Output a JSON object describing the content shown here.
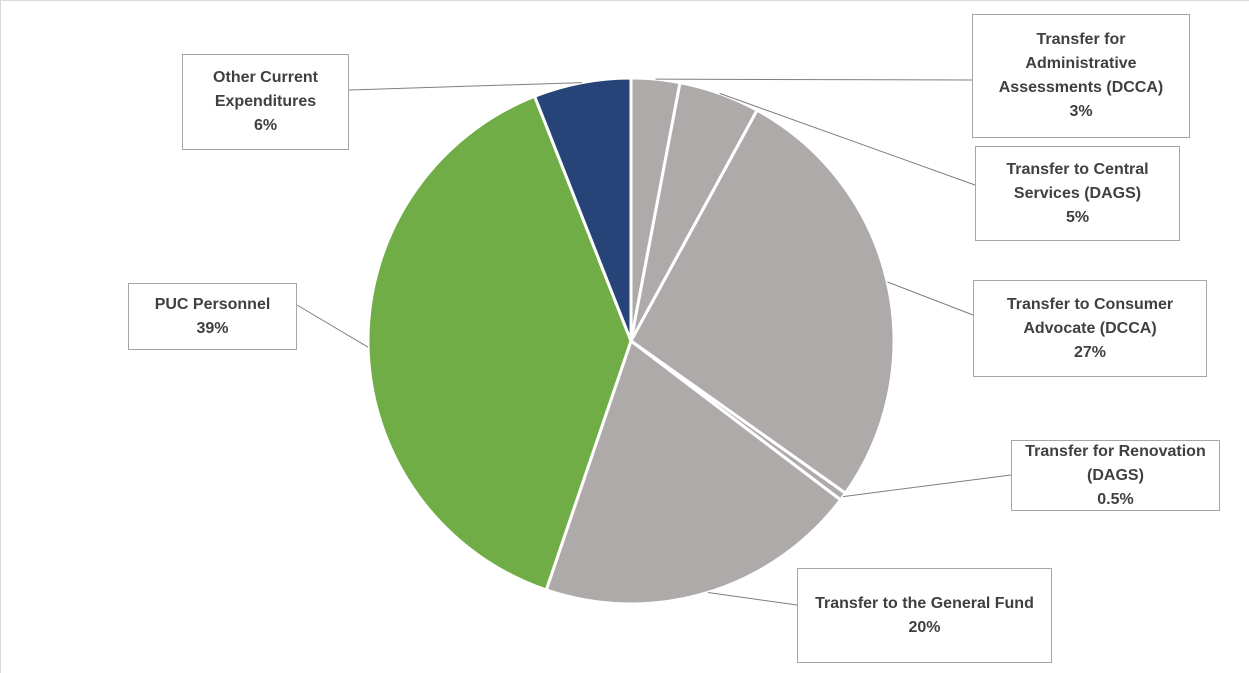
{
  "chart_data": {
    "type": "pie",
    "categories": [
      "Transfer for Administrative Assessments (DCCA)",
      "Transfer to Central Services (DAGS)",
      "Transfer to Consumer Advocate (DCCA)",
      "Transfer for Renovation (DAGS)",
      "Transfer to the General Fund",
      "PUC Personnel",
      "Other Current Expenditures"
    ],
    "values": [
      3,
      5,
      27,
      0.5,
      20,
      39,
      6
    ],
    "value_labels": [
      "3%",
      "5%",
      "27%",
      "0.5%",
      "20%",
      "39%",
      "6%"
    ],
    "colors": [
      "#aeaaaa",
      "#aeaaaa",
      "#aeaaaa",
      "#aeaaaa",
      "#aeaaaa",
      "#70ad47",
      "#264478"
    ]
  }
}
